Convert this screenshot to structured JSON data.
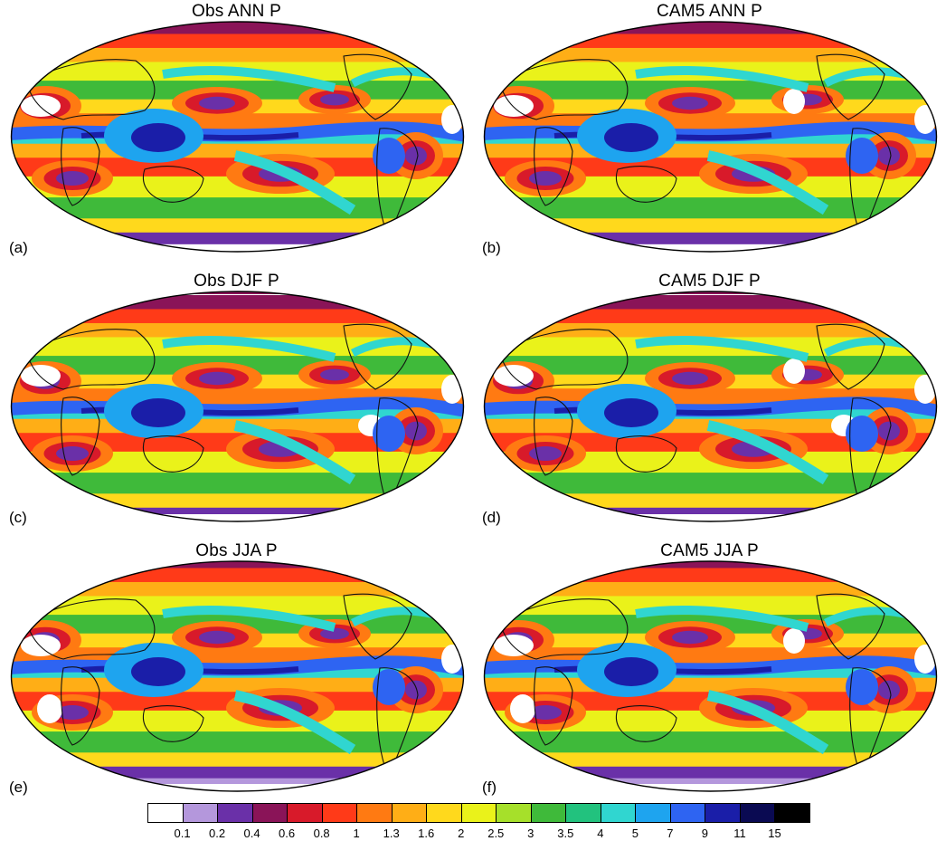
{
  "panels": [
    {
      "title": "Obs ANN P",
      "label": "(a)",
      "season": "ANN",
      "source": "Obs"
    },
    {
      "title": "CAM5 ANN P",
      "label": "(b)",
      "season": "ANN",
      "source": "CAM5"
    },
    {
      "title": "Obs DJF P",
      "label": "(c)",
      "season": "DJF",
      "source": "Obs"
    },
    {
      "title": "CAM5 DJF P",
      "label": "(d)",
      "season": "DJF",
      "source": "CAM5"
    },
    {
      "title": "Obs JJA P",
      "label": "(e)",
      "season": "JJA",
      "source": "Obs"
    },
    {
      "title": "CAM5 JJA P",
      "label": "(f)",
      "season": "JJA",
      "source": "CAM5"
    }
  ],
  "colorbar": {
    "levels": [
      "0.1",
      "0.2",
      "0.4",
      "0.6",
      "0.8",
      "1",
      "1.3",
      "1.6",
      "2",
      "2.5",
      "3",
      "3.5",
      "4",
      "5",
      "7",
      "9",
      "11",
      "15"
    ],
    "colors": [
      "#ffffff",
      "#b497dc",
      "#6a30a8",
      "#8a1458",
      "#d81a2a",
      "#ff3a18",
      "#ff7a12",
      "#ffae16",
      "#ffd91c",
      "#eaf21a",
      "#a6e02a",
      "#3fba3a",
      "#22c27e",
      "#30d6d0",
      "#1ea4ef",
      "#2e64f2",
      "#1a1ea8",
      "#0a0a52",
      "#000000"
    ]
  },
  "colors": {
    "map_outline": "#000000",
    "coastline": "#111111"
  }
}
